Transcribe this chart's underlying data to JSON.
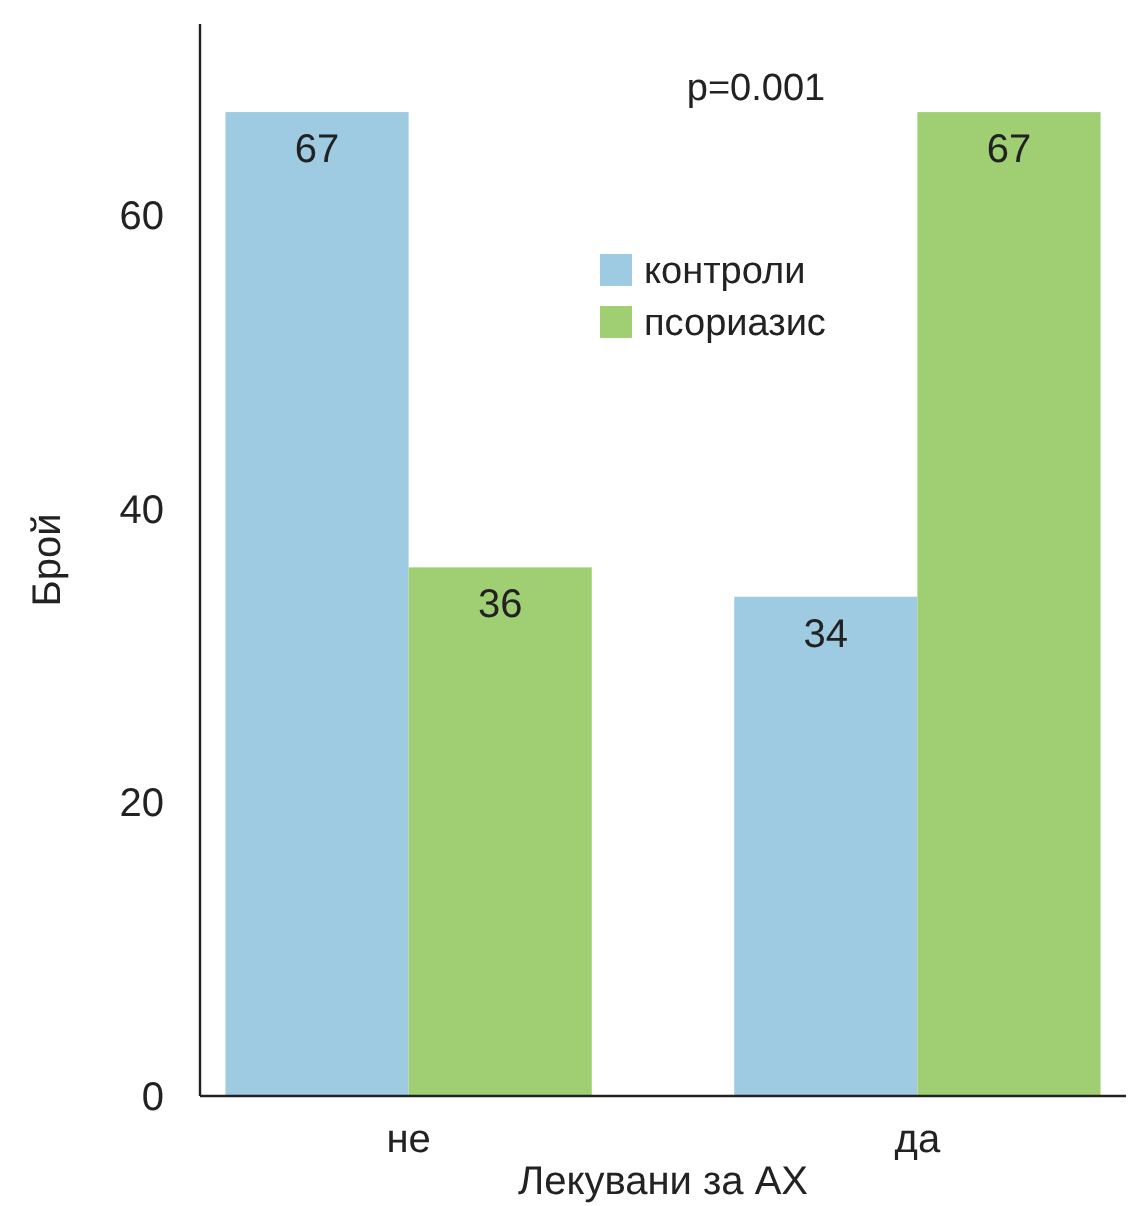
{
  "chart_data": {
    "type": "bar",
    "ylabel": "Брой",
    "xlabel": "Лекувани за АХ",
    "categories": [
      "не",
      "да"
    ],
    "series": [
      {
        "name": "контроли",
        "color": "#9ecbe2",
        "values": [
          67,
          34
        ]
      },
      {
        "name": "псориазис",
        "color": "#a0cf73",
        "values": [
          36,
          67
        ]
      }
    ],
    "ylim": [
      0,
      73
    ],
    "yticks": [
      0,
      20,
      40,
      60
    ],
    "data_labels": true,
    "legend": "top",
    "grid": false,
    "annotations": [
      {
        "text": "p=0.001"
      }
    ]
  }
}
